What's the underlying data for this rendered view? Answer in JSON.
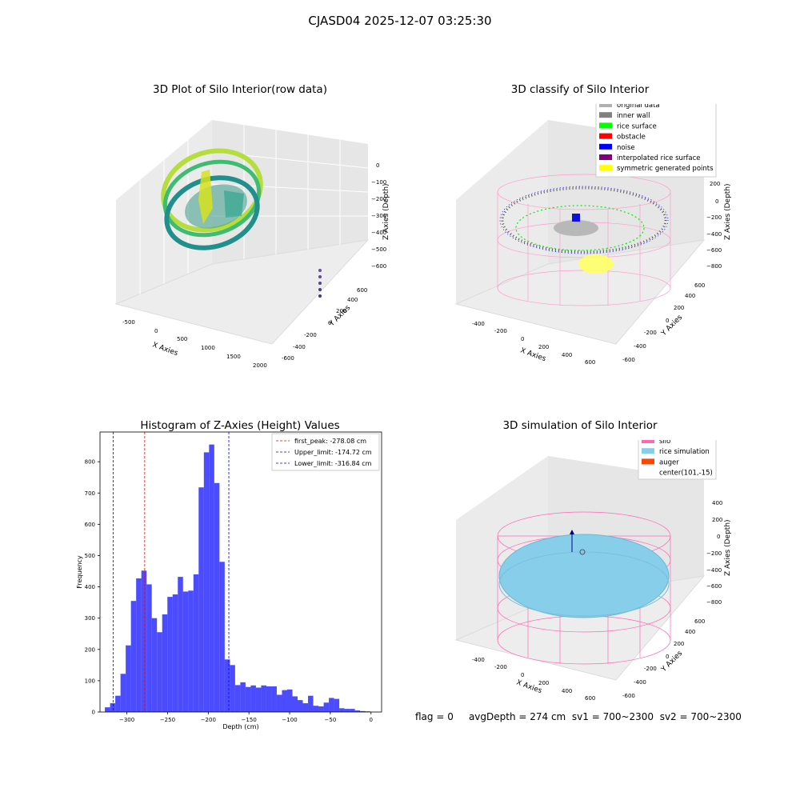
{
  "suptitle": "CJASD04 2025-12-07 03:25:30",
  "panels": {
    "raw": {
      "title": "3D Plot of Silo Interior(row data)",
      "xlabel": "X Axies",
      "ylabel": "Y Axies",
      "zlabel": "Z Axies (Depth)",
      "xticks": [
        "-500",
        "0",
        "500",
        "1000",
        "1500",
        "2000"
      ],
      "yticks": [
        "-600",
        "-400",
        "-200",
        "0",
        "200",
        "400",
        "600"
      ],
      "zticks": [
        "0",
        "−100",
        "−200",
        "−300",
        "−400",
        "−500",
        "−600"
      ]
    },
    "classify": {
      "title": "3D classify of Silo Interior",
      "xlabel": "X Axies",
      "ylabel": "Y Axies",
      "zlabel": "Z Axies (Depth)",
      "xticks": [
        "-400",
        "-200",
        "0",
        "200",
        "400",
        "600"
      ],
      "yticks": [
        "-600",
        "-400",
        "-200",
        "0",
        "200",
        "400",
        "600"
      ],
      "zticks": [
        "200",
        "0",
        "−200",
        "−400",
        "−600",
        "−800"
      ],
      "legend": [
        {
          "label": "original data",
          "color": "#b0b0b0"
        },
        {
          "label": "inner wall",
          "color": "#808080"
        },
        {
          "label": "rice surface",
          "color": "#00ff00"
        },
        {
          "label": "obstacle",
          "color": "#ff0000"
        },
        {
          "label": "noise",
          "color": "#0000ff"
        },
        {
          "label": "interpolated rice surface",
          "color": "#800080"
        },
        {
          "label": "symmetric generated points",
          "color": "#ffff00"
        }
      ]
    },
    "simulation": {
      "title": "3D simulation of Silo Interior",
      "xlabel": "X Axies",
      "ylabel": "Y Axies",
      "zlabel": "Z Axies (Depth)",
      "xticks": [
        "-400",
        "-200",
        "0",
        "200",
        "400",
        "600"
      ],
      "yticks": [
        "-600",
        "-400",
        "-200",
        "0",
        "200",
        "400",
        "600"
      ],
      "zticks": [
        "400",
        "200",
        "0",
        "−200",
        "−400",
        "−600",
        "−800"
      ],
      "legend": [
        {
          "label": "silo",
          "color": "#ff69b4"
        },
        {
          "label": "rice simulation",
          "color": "#87ceeb"
        },
        {
          "label": "auger",
          "color": "#ff4500"
        },
        {
          "label": "center(101,-15)",
          "color": ""
        }
      ]
    }
  },
  "chart_data": [
    {
      "type": "bar",
      "title": "Histogram of Z-Axies (Height) Values",
      "xlabel": "Depth (cm)",
      "ylabel": "Frequency",
      "bar_color": "#0000ff",
      "bin_start": -327,
      "bin_width": 6.4,
      "values": [
        15,
        28,
        52,
        122,
        213,
        355,
        427,
        452,
        408,
        300,
        255,
        312,
        368,
        376,
        432,
        385,
        388,
        440,
        718,
        830,
        855,
        732,
        480,
        168,
        150,
        86,
        95,
        80,
        85,
        78,
        85,
        82,
        82,
        55,
        70,
        72,
        50,
        38,
        28,
        52,
        20,
        18,
        30,
        45,
        42,
        12,
        10,
        10,
        5,
        3,
        2
      ],
      "xticks": [
        -300,
        -250,
        -200,
        -150,
        -100,
        -50,
        0
      ],
      "xlim": [
        -333,
        13
      ],
      "yticks": [
        0,
        100,
        200,
        300,
        400,
        500,
        600,
        700,
        800
      ],
      "ylim": [
        0,
        895
      ],
      "lines": [
        {
          "label": "first_peak: -278.08 cm",
          "x": -278.08,
          "color": "#ff0000"
        },
        {
          "label": "Upper_limit: -174.72 cm",
          "x": -174.72,
          "color": "#0000ff"
        },
        {
          "label": "Lower_limit: -316.84 cm",
          "x": -316.84,
          "color": "#0000ff"
        }
      ],
      "legend_position": "upper right"
    }
  ],
  "footer": {
    "flag": "flag = 0",
    "avg": "avgDepth = 274 cm",
    "sv1": "sv1 = 700~2300",
    "sv2": "sv2 = 700~2300"
  }
}
